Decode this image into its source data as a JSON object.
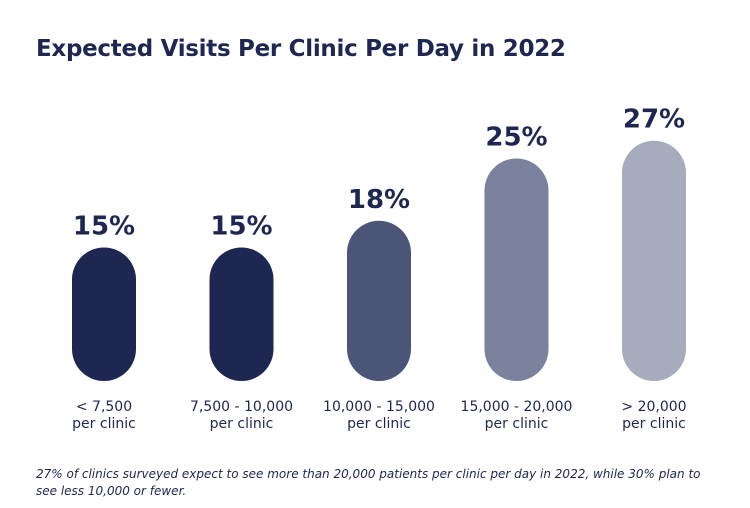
{
  "chart_data": {
    "type": "bar",
    "title": "Expected Visits Per Clinic Per Day in 2022",
    "categories": [
      {
        "line1": "< 7,500",
        "line2": "per clinic"
      },
      {
        "line1": "7,500 - 10,000",
        "line2": "per clinic"
      },
      {
        "line1": "10,000 - 15,000",
        "line2": "per clinic"
      },
      {
        "line1": "15,000 - 20,000",
        "line2": "per clinic"
      },
      {
        "line1": "> 20,000",
        "line2": "per clinic"
      }
    ],
    "values": [
      15,
      15,
      18,
      25,
      27
    ],
    "data_labels": [
      "15%",
      "15%",
      "18%",
      "25%",
      "27%"
    ],
    "colors": [
      "#1d2752",
      "#1d2752",
      "#4a5577",
      "#7a829e",
      "#a6acbb"
    ],
    "xlabel": "",
    "ylabel": "",
    "grid": false,
    "legend": "none"
  },
  "footnote": "27% of clinics surveyed expect to see more than 20,000 patients per clinic per day in 2022, while 30% plan to see less 10,000 or fewer."
}
